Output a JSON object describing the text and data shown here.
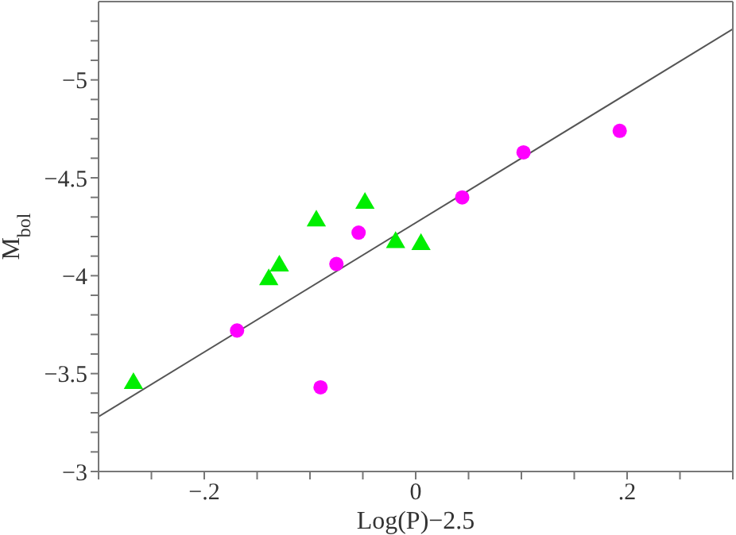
{
  "chart_data": {
    "type": "scatter",
    "xlabel": "Log(P)−2.5",
    "ylabel": "M$_{bol}$",
    "xlim": [
      -0.3,
      0.3
    ],
    "ylim": [
      -3,
      -5.4
    ],
    "xticks": [
      {
        "value": -0.3,
        "label": null
      },
      {
        "value": -0.25,
        "label": null
      },
      {
        "value": -0.2,
        "label": "−.2"
      },
      {
        "value": -0.15,
        "label": null
      },
      {
        "value": -0.1,
        "label": null
      },
      {
        "value": -0.05,
        "label": null
      },
      {
        "value": 0,
        "label": "0"
      },
      {
        "value": 0.05,
        "label": null
      },
      {
        "value": 0.1,
        "label": null
      },
      {
        "value": 0.15,
        "label": null
      },
      {
        "value": 0.2,
        "label": ".2"
      },
      {
        "value": 0.25,
        "label": null
      },
      {
        "value": 0.3,
        "label": null
      }
    ],
    "yticks": [
      {
        "value": -3,
        "label": "−3"
      },
      {
        "value": -3.1,
        "label": null
      },
      {
        "value": -3.2,
        "label": null
      },
      {
        "value": -3.3,
        "label": null
      },
      {
        "value": -3.4,
        "label": null
      },
      {
        "value": -3.5,
        "label": "−3.5"
      },
      {
        "value": -3.6,
        "label": null
      },
      {
        "value": -3.7,
        "label": null
      },
      {
        "value": -3.8,
        "label": null
      },
      {
        "value": -3.9,
        "label": null
      },
      {
        "value": -4,
        "label": "−4"
      },
      {
        "value": -4.1,
        "label": null
      },
      {
        "value": -4.2,
        "label": null
      },
      {
        "value": -4.3,
        "label": null
      },
      {
        "value": -4.4,
        "label": null
      },
      {
        "value": -4.5,
        "label": "−4.5"
      },
      {
        "value": -4.6,
        "label": null
      },
      {
        "value": -4.7,
        "label": null
      },
      {
        "value": -4.8,
        "label": null
      },
      {
        "value": -4.9,
        "label": null
      },
      {
        "value": -5,
        "label": "−5"
      },
      {
        "value": -5.1,
        "label": null
      },
      {
        "value": -5.2,
        "label": null
      },
      {
        "value": -5.3,
        "label": null
      }
    ],
    "series": [
      {
        "marker": "circle",
        "color": "#ff00ff",
        "x": [
          -0.169,
          -0.09,
          -0.075,
          -0.054,
          0.044,
          0.102,
          0.193
        ],
        "values": [
          -3.72,
          -3.43,
          -4.06,
          -4.22,
          -4.4,
          -4.63,
          -4.74
        ]
      },
      {
        "marker": "triangle",
        "color": "#00ee00",
        "x": [
          -0.267,
          -0.139,
          -0.129,
          -0.094,
          -0.048,
          -0.019,
          0.005
        ],
        "values": [
          -3.45,
          -3.98,
          -4.05,
          -4.28,
          -4.37,
          -4.17,
          -4.16
        ]
      },
      {
        "type": "line",
        "marker": "none",
        "line_style": "solid",
        "color": "#555555",
        "x": [
          -0.3,
          0.3
        ],
        "values": [
          -3.28,
          -5.26
        ]
      }
    ]
  }
}
